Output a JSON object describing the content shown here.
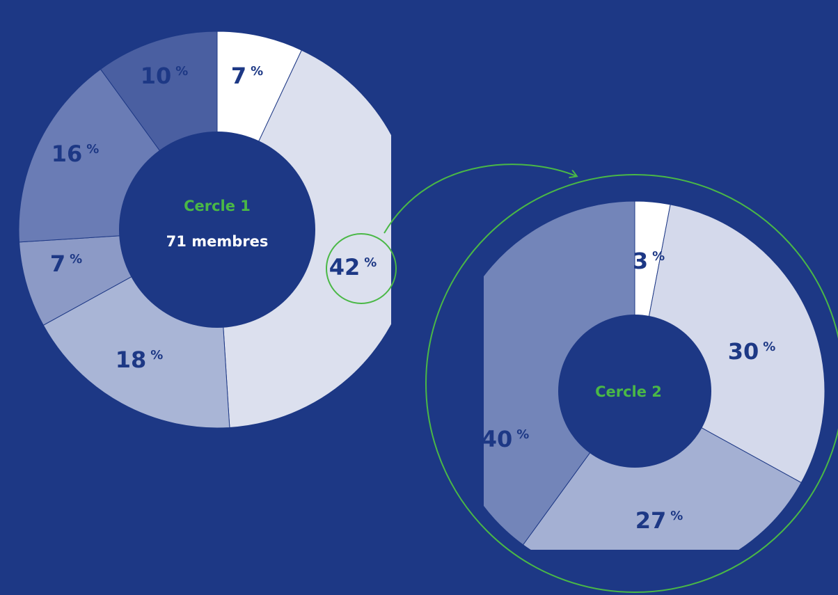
{
  "colors": {
    "background": "#1d3885",
    "accent_green": "#4ab846",
    "label_blue": "#1d3885",
    "center_text": "#ffffff"
  },
  "chart_data": [
    {
      "type": "pie",
      "title": "Cercle 1",
      "center_label": "71 membres",
      "slices": [
        {
          "value": 7,
          "label": "7",
          "color": "#ffffff"
        },
        {
          "value": 42,
          "label": "42",
          "color": "#dce0ee"
        },
        {
          "value": 18,
          "label": "18",
          "color": "#a9b5d6"
        },
        {
          "value": 7,
          "label": "7",
          "color": "#8c9ac6"
        },
        {
          "value": 16,
          "label": "16",
          "color": "#6a7cb5"
        },
        {
          "value": 10,
          "label": "10",
          "color": "#4a5fa1"
        }
      ],
      "unit": "%",
      "highlighted_slice": "42"
    },
    {
      "type": "pie",
      "title": "Cercle 2",
      "slices": [
        {
          "value": 3,
          "label": "3",
          "color": "#ffffff"
        },
        {
          "value": 30,
          "label": "30",
          "color": "#d4d9eb"
        },
        {
          "value": 27,
          "label": "27",
          "color": "#a4b0d3"
        },
        {
          "value": 40,
          "label": "40",
          "color": "#7385b9"
        }
      ],
      "unit": "%"
    }
  ]
}
